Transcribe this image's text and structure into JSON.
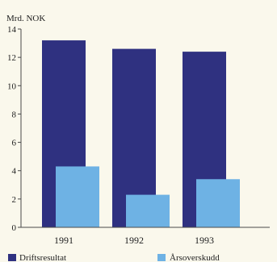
{
  "chart_data": {
    "type": "bar",
    "unit_label": "Mrd. NOK",
    "categories": [
      "1991",
      "1992",
      "1993"
    ],
    "series": [
      {
        "name": "Driftsresultat",
        "color": "#2f3180",
        "values": [
          13.2,
          12.6,
          12.4
        ]
      },
      {
        "name": "Årsoverskudd",
        "color": "#6eb2e4",
        "values": [
          4.3,
          2.3,
          3.4
        ]
      }
    ],
    "ylim": [
      0,
      14
    ],
    "yticks": [
      0,
      2,
      4,
      6,
      8,
      10,
      12,
      14
    ],
    "grid": false,
    "legend": "bottom"
  }
}
